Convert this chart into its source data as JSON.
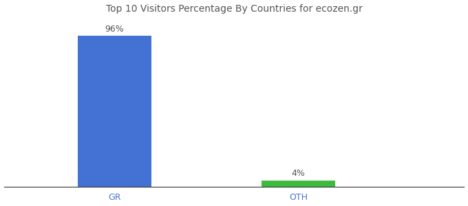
{
  "categories": [
    "GR",
    "OTH"
  ],
  "values": [
    96,
    4
  ],
  "bar_colors": [
    "#4472d4",
    "#3dbb3d"
  ],
  "bar_labels": [
    "96%",
    "4%"
  ],
  "title": "Top 10 Visitors Percentage By Countries for ecozen.gr",
  "background_color": "#ffffff",
  "ylim": [
    0,
    108
  ],
  "label_fontsize": 9,
  "tick_fontsize": 9,
  "title_fontsize": 10,
  "bar_width": 0.12,
  "x_positions": [
    0.18,
    0.48
  ],
  "xlim": [
    0.0,
    0.75
  ]
}
